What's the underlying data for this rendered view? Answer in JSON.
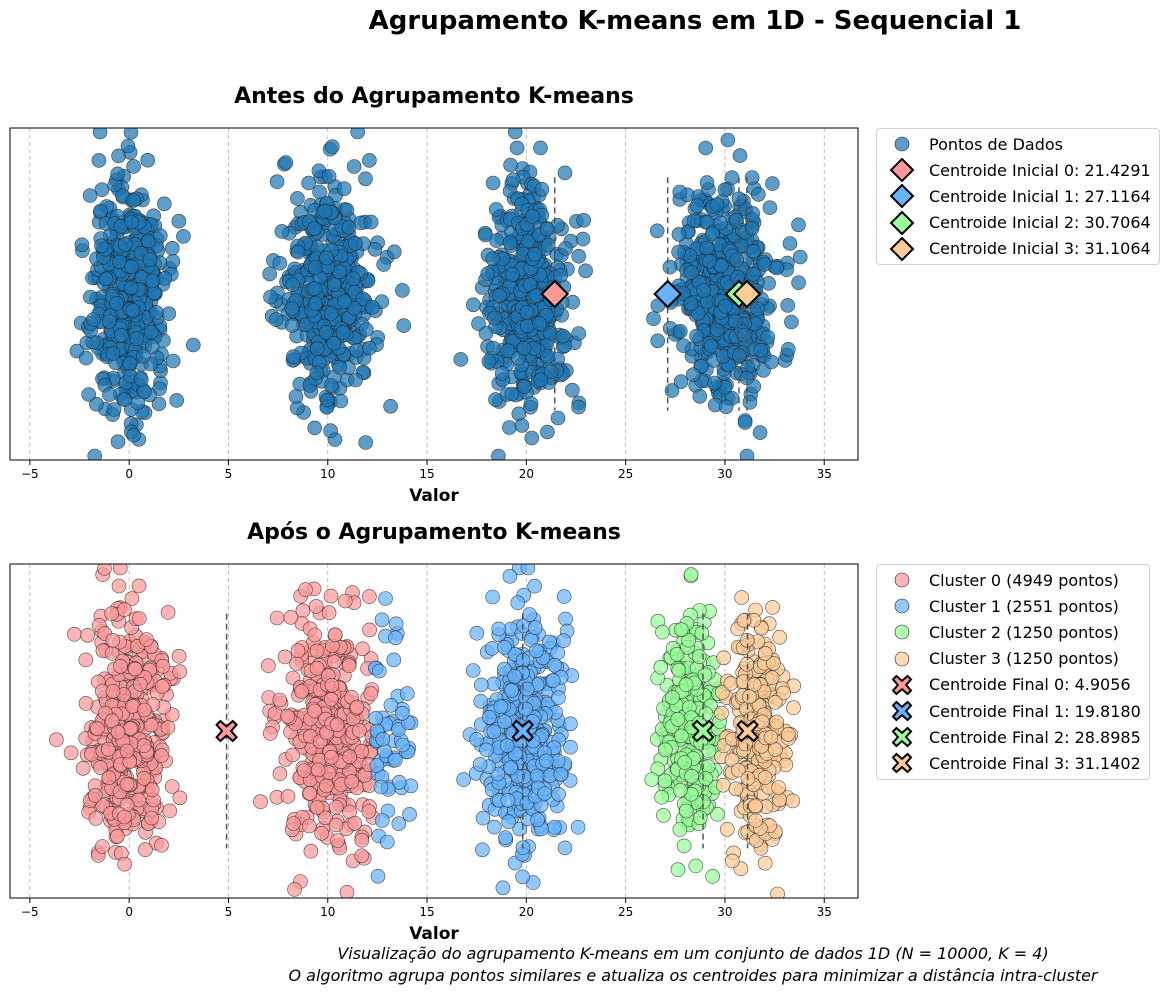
{
  "suptitle": "Agrupamento K-means em 1D - Sequencial 1",
  "caption_line1": "Visualização do agrupamento K-means em um conjunto de dados 1D (N = 10000, K = 4)",
  "caption_line2": "O algoritmo agrupa pontos similares e atualiza os centroides para minimizar a distância intra-cluster",
  "colors": {
    "points": "#1f77b4",
    "cluster": [
      "#ff9999",
      "#66b3ff",
      "#99ff99",
      "#ffcc99"
    ],
    "centroid_edge": "#000000",
    "grid": "#b0b0b0"
  },
  "chart_data": [
    {
      "type": "scatter",
      "title": "Antes do Agrupamento K-means",
      "xlabel": "Valor",
      "ylabel": "",
      "xlim": [
        -6,
        36.7
      ],
      "xticks": [
        -5,
        0,
        5,
        10,
        15,
        20,
        25,
        30,
        35
      ],
      "grid": "vertical-dashed",
      "legend": "outside-right",
      "point_groups": [
        {
          "name": "Pontos de Dados",
          "center": 0,
          "spread": 1.3,
          "count": 450,
          "color": "#1f77b4"
        },
        {
          "name": "Pontos de Dados",
          "center": 10,
          "spread": 1.5,
          "count": 450,
          "color": "#1f77b4"
        },
        {
          "name": "Pontos de Dados",
          "center": 20,
          "spread": 1.4,
          "count": 420,
          "color": "#1f77b4"
        },
        {
          "name": "Pontos de Dados",
          "center": 30,
          "spread": 1.7,
          "count": 480,
          "color": "#1f77b4"
        }
      ],
      "centroids": [
        {
          "label": "Centroide Inicial 0: 21.4291",
          "x": 21.4291,
          "color": "#ff9999",
          "marker": "diamond"
        },
        {
          "label": "Centroide Inicial 1: 27.1164",
          "x": 27.1164,
          "color": "#66b3ff",
          "marker": "diamond"
        },
        {
          "label": "Centroide Inicial 2: 30.7064",
          "x": 30.7064,
          "color": "#99ff99",
          "marker": "diamond"
        },
        {
          "label": "Centroide Inicial 3: 31.1064",
          "x": 31.1064,
          "color": "#ffcc99",
          "marker": "diamond"
        }
      ],
      "legend_entries": [
        "Pontos de Dados",
        "Centroide Inicial 0: 21.4291",
        "Centroide Inicial 1: 27.1164",
        "Centroide Inicial 2: 30.7064",
        "Centroide Inicial 3: 31.1064"
      ]
    },
    {
      "type": "scatter",
      "title": "Após o Agrupamento K-means",
      "xlabel": "Valor",
      "ylabel": "",
      "xlim": [
        -6,
        36.7
      ],
      "xticks": [
        -5,
        0,
        5,
        10,
        15,
        20,
        25,
        30,
        35
      ],
      "grid": "vertical-dashed",
      "legend": "outside-right",
      "point_groups": [
        {
          "name": "Cluster 0 (4949 pontos)",
          "center": 0,
          "spread": 1.3,
          "count": 440,
          "color": "#ff9999",
          "max": 100
        },
        {
          "name": "Cluster 0 (4949 pontos)",
          "center": 10,
          "spread": 1.5,
          "count": 380,
          "color": "#ff9999",
          "max": 12.3
        },
        {
          "name": "Cluster 1 (2551 pontos)",
          "center": 13.2,
          "spread": 0.9,
          "count": 60,
          "color": "#66b3ff",
          "min": 12.3,
          "max": 14.2
        },
        {
          "name": "Cluster 1 (2551 pontos)",
          "center": 20,
          "spread": 1.4,
          "count": 420,
          "color": "#66b3ff"
        },
        {
          "name": "Cluster 2 (1250 pontos)",
          "center": 28.2,
          "spread": 1.0,
          "count": 240,
          "color": "#99ff99",
          "min": 25,
          "max": 29.8
        },
        {
          "name": "Cluster 3 (1250 pontos)",
          "center": 31.5,
          "spread": 1.1,
          "count": 240,
          "color": "#ffcc99",
          "min": 29.8,
          "max": 35
        }
      ],
      "centroids": [
        {
          "label": "Centroide Final 0: 4.9056",
          "x": 4.9056,
          "color": "#ff9999",
          "marker": "X"
        },
        {
          "label": "Centroide Final 1: 19.8180",
          "x": 19.818,
          "color": "#66b3ff",
          "marker": "X"
        },
        {
          "label": "Centroide Final 2: 28.8985",
          "x": 28.8985,
          "color": "#99ff99",
          "marker": "X"
        },
        {
          "label": "Centroide Final 3: 31.1402",
          "x": 31.1402,
          "color": "#ffcc99",
          "marker": "X"
        }
      ],
      "legend_entries": [
        "Cluster 0 (4949 pontos)",
        "Cluster 1 (2551 pontos)",
        "Cluster 2 (1250 pontos)",
        "Cluster 3 (1250 pontos)",
        "Centroide Final 0: 4.9056",
        "Centroide Final 1: 19.8180",
        "Centroide Final 2: 28.8985",
        "Centroide Final 3: 31.1402"
      ]
    }
  ]
}
